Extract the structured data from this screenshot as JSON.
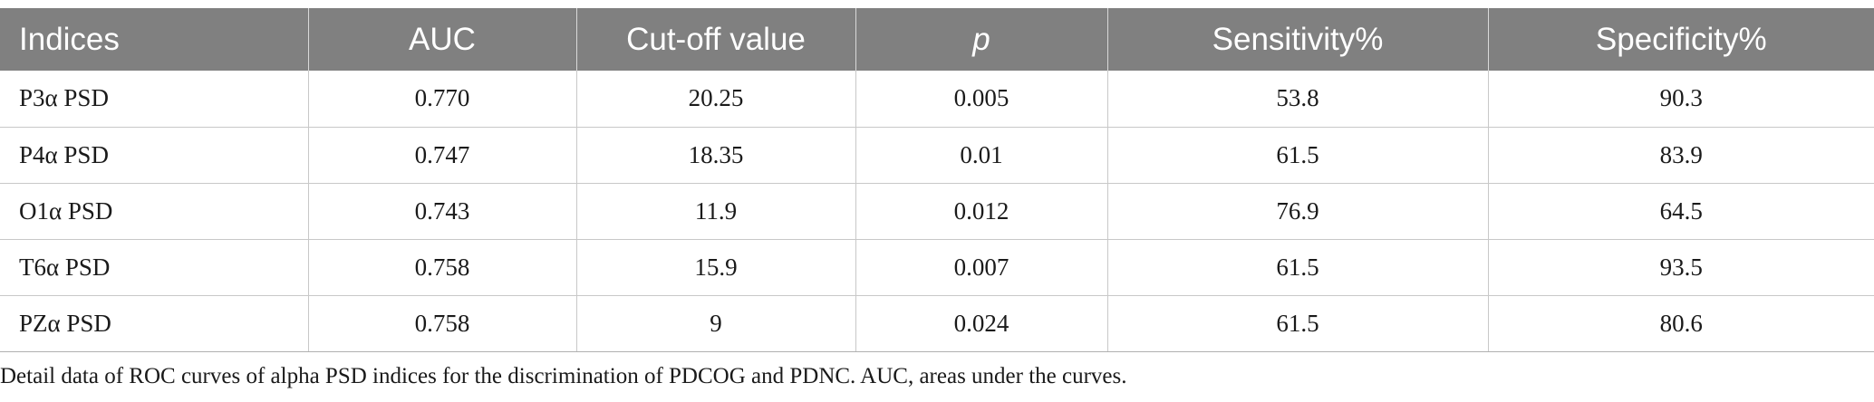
{
  "table": {
    "headers": [
      "Indices",
      "AUC",
      "Cut-off value",
      "p",
      "Sensitivity%",
      "Specificity%"
    ],
    "rows": [
      [
        "P3α PSD",
        "0.770",
        "20.25",
        "0.005",
        "53.8",
        "90.3"
      ],
      [
        "P4α PSD",
        "0.747",
        "18.35",
        "0.01",
        "61.5",
        "83.9"
      ],
      [
        "O1α PSD",
        "0.743",
        "11.9",
        "0.012",
        "76.9",
        "64.5"
      ],
      [
        "T6α PSD",
        "0.758",
        "15.9",
        "0.007",
        "61.5",
        "93.5"
      ],
      [
        "PZα PSD",
        "0.758",
        "9",
        "0.024",
        "61.5",
        "80.6"
      ]
    ]
  },
  "caption": "Detail data of ROC curves of alpha PSD indices for the discrimination of PDCOG and PDNC. AUC, areas under the curves.",
  "colors": {
    "header_bg": "#808080",
    "header_text": "#ffffff",
    "grid": "#c8c8c8"
  }
}
